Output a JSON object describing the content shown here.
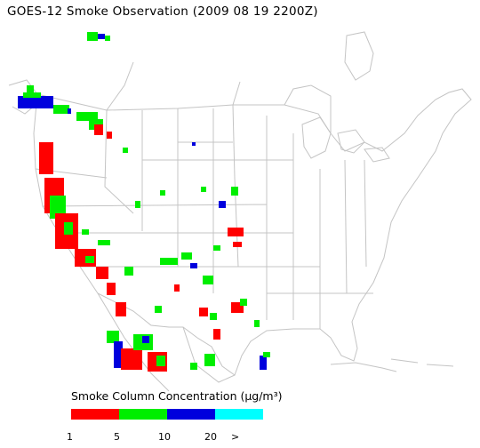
{
  "title": "GOES-12 Smoke Observation (2009 08 19  2200Z)",
  "legend": {
    "label": "Smoke Column Concentration (μg/m³)",
    "ticks": [
      "1",
      "5",
      "10",
      "20",
      ">"
    ],
    "bins": [
      {
        "color": "#ff0000"
      },
      {
        "color": "#00ee00"
      },
      {
        "color": "#0000dd"
      },
      {
        "color": "#00ffff"
      }
    ]
  },
  "colors": {
    "outline": "#c4c4c4",
    "land": "#ffffff",
    "bin_1_5": "#ff0000",
    "bin_5_10": "#00ee00",
    "bin_10_20": "#0000dd",
    "bin_gt20": "#00ffff"
  }
}
